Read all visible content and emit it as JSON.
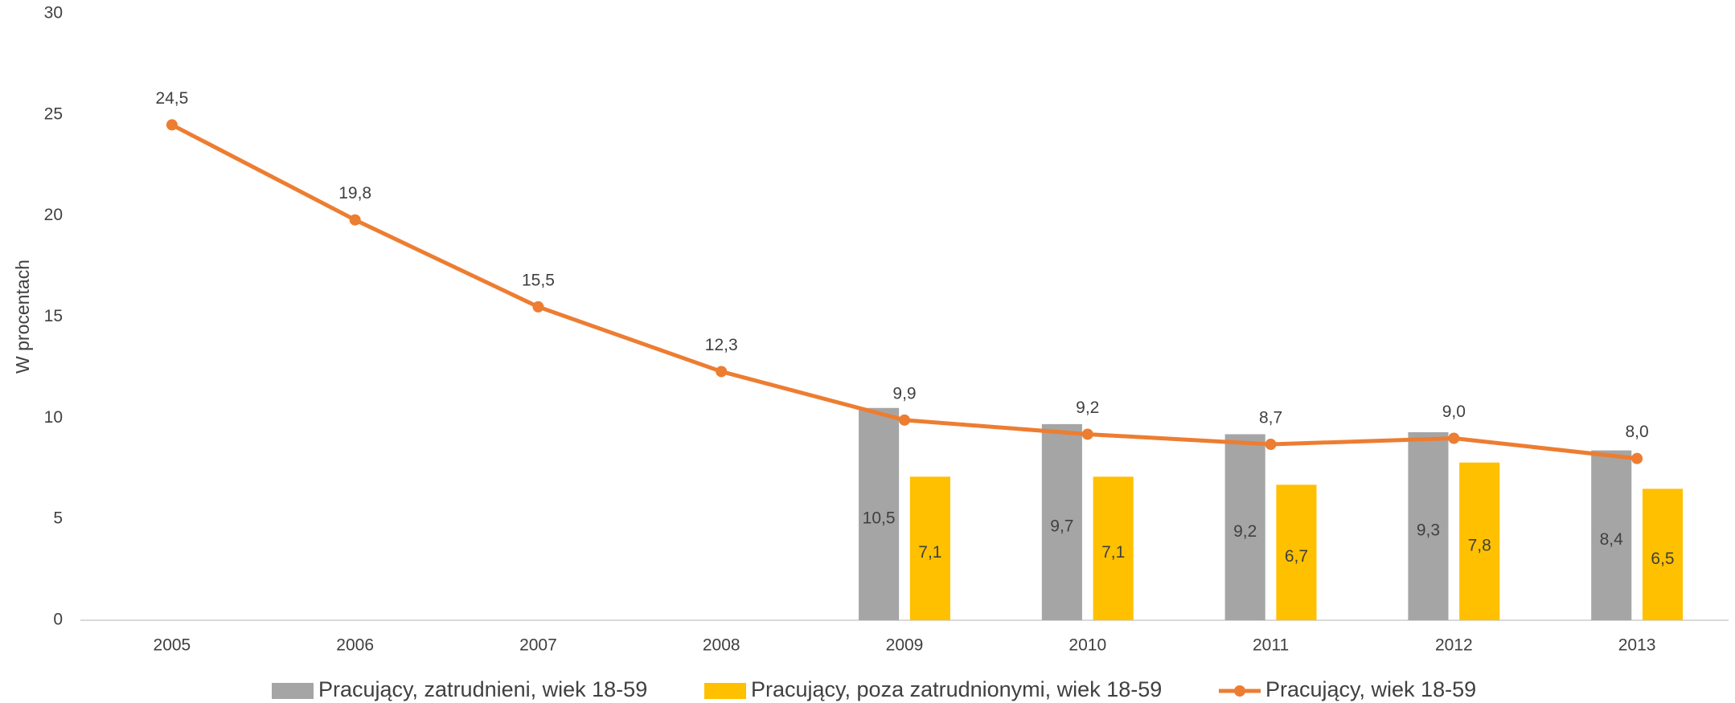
{
  "chart_data": {
    "type": "combo",
    "y_label": "W procentach",
    "categories": [
      "2005",
      "2006",
      "2007",
      "2008",
      "2009",
      "2010",
      "2011",
      "2012",
      "2013"
    ],
    "ylim": [
      0,
      30
    ],
    "yticks": [
      0,
      5,
      10,
      15,
      20,
      25,
      30
    ],
    "grid": false,
    "legend": "bottom",
    "series": [
      {
        "name": "Pracujący, zatrudnieni, wiek 18-59",
        "type": "bar",
        "color": "#a5a5a5",
        "values": [
          null,
          null,
          null,
          null,
          10.5,
          9.7,
          9.2,
          9.3,
          8.4
        ],
        "value_labels": [
          null,
          null,
          null,
          null,
          "10,5",
          "9,7",
          "9,2",
          "9,3",
          "8,4"
        ]
      },
      {
        "name": "Pracujący, poza zatrudnionymi, wiek 18-59",
        "type": "bar",
        "color": "#ffc000",
        "values": [
          null,
          null,
          null,
          null,
          7.1,
          7.1,
          6.7,
          7.8,
          6.5
        ],
        "value_labels": [
          null,
          null,
          null,
          null,
          "7,1",
          "7,1",
          "6,7",
          "7,8",
          "6,5"
        ]
      },
      {
        "name": "Pracujący, wiek 18-59",
        "type": "line",
        "color": "#ed7d31",
        "values": [
          24.5,
          19.8,
          15.5,
          12.3,
          9.9,
          9.2,
          8.7,
          9.0,
          8.0
        ],
        "value_labels": [
          "24,5",
          "19,8",
          "15,5",
          "12,3",
          "9,9",
          "9,2",
          "8,7",
          "9,0",
          "8,0"
        ]
      }
    ]
  }
}
